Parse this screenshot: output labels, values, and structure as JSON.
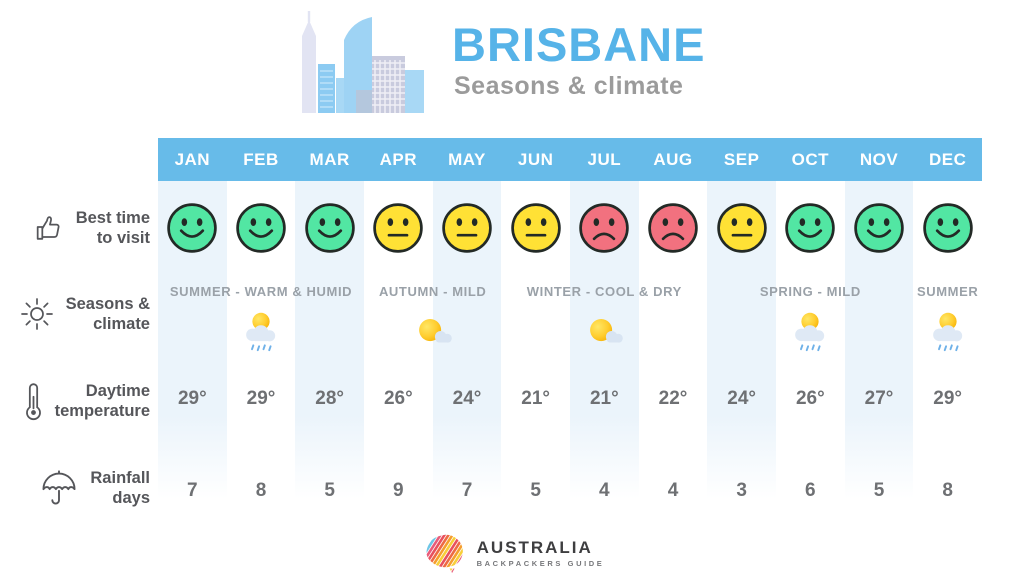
{
  "header": {
    "title": "BRISBANE",
    "subtitle": "Seasons & climate"
  },
  "labels": {
    "best_time": {
      "line1": "Best time",
      "line2": "to visit",
      "icon": "thumbs-up-icon"
    },
    "seasons": {
      "line1": "Seasons &",
      "line2": "climate",
      "icon": "sun-icon"
    },
    "temperature": {
      "line1": "Daytime",
      "line2": "temperature",
      "icon": "thermometer-icon"
    },
    "rainfall": {
      "line1": "Rainfall",
      "line2": "days",
      "icon": "umbrella-icon"
    }
  },
  "table": {
    "months": [
      "JAN",
      "FEB",
      "MAR",
      "APR",
      "MAY",
      "JUN",
      "JUL",
      "AUG",
      "SEP",
      "OCT",
      "NOV",
      "DEC"
    ],
    "best_time_ratings": [
      "happy",
      "happy",
      "happy",
      "neutral",
      "neutral",
      "neutral",
      "sad",
      "sad",
      "neutral",
      "happy",
      "happy",
      "happy"
    ],
    "season_groups": [
      {
        "label": "SUMMER - WARM & HUMID",
        "start": 1,
        "span": 3,
        "icon": "sun-rain-icon"
      },
      {
        "label": "AUTUMN - MILD",
        "start": 4,
        "span": 2,
        "icon": "sun-cloud-icon"
      },
      {
        "label": "WINTER - COOL & DRY",
        "start": 6,
        "span": 3,
        "icon": "sun-cloud-icon"
      },
      {
        "label": "SPRING - MILD",
        "start": 9,
        "span": 3,
        "icon": "sun-rain-icon"
      },
      {
        "label": "SUMMER",
        "start": 12,
        "span": 1,
        "icon": "sun-rain-icon"
      }
    ],
    "temperatures": [
      "29°",
      "29°",
      "28°",
      "26°",
      "24°",
      "21°",
      "21°",
      "22°",
      "24°",
      "26°",
      "27°",
      "29°"
    ],
    "rainfall_days": [
      "7",
      "8",
      "5",
      "9",
      "7",
      "5",
      "4",
      "4",
      "3",
      "6",
      "5",
      "8"
    ]
  },
  "chart_data": {
    "type": "table",
    "title": "BRISBANE",
    "subtitle": "Seasons & climate",
    "categories": [
      "JAN",
      "FEB",
      "MAR",
      "APR",
      "MAY",
      "JUN",
      "JUL",
      "AUG",
      "SEP",
      "OCT",
      "NOV",
      "DEC"
    ],
    "series": [
      {
        "name": "Best time to visit (rating)",
        "values": [
          "happy",
          "happy",
          "happy",
          "neutral",
          "neutral",
          "neutral",
          "sad",
          "sad",
          "neutral",
          "happy",
          "happy",
          "happy"
        ]
      },
      {
        "name": "Daytime temperature (°C)",
        "values": [
          29,
          29,
          28,
          26,
          24,
          21,
          21,
          22,
          24,
          26,
          27,
          29
        ]
      },
      {
        "name": "Rainfall days",
        "values": [
          7,
          8,
          5,
          9,
          7,
          5,
          4,
          4,
          3,
          6,
          5,
          8
        ]
      }
    ],
    "season_bands": [
      {
        "label": "SUMMER - WARM & HUMID",
        "months": [
          "JAN",
          "FEB",
          "MAR"
        ]
      },
      {
        "label": "AUTUMN - MILD",
        "months": [
          "APR",
          "MAY"
        ]
      },
      {
        "label": "WINTER - COOL & DRY",
        "months": [
          "JUN",
          "JUL",
          "AUG"
        ]
      },
      {
        "label": "SPRING - MILD",
        "months": [
          "SEP",
          "OCT",
          "NOV"
        ]
      },
      {
        "label": "SUMMER",
        "months": [
          "DEC"
        ]
      }
    ]
  },
  "footer": {
    "brand": "AUSTRALIA",
    "brand_sub": "BACKPACKERS GUIDE"
  },
  "colors": {
    "band_blue": "#67BBE9",
    "title_blue": "#56B3E8",
    "subtitle_gray": "#9B9B9B",
    "stripe_blue": "#EBF4FB",
    "season_label_gray": "#9AA1A8",
    "value_gray": "#6E7073",
    "label_dark": "#55565A",
    "face_happy": "#52E6A3",
    "face_neutral": "#FFE135",
    "face_sad": "#F2717F",
    "face_outline": "#232A26"
  }
}
